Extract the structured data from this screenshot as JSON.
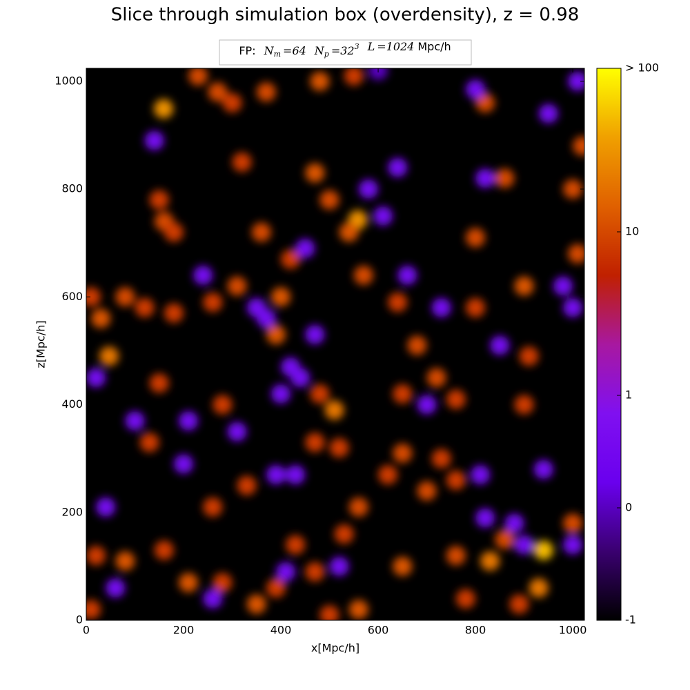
{
  "chart_data": {
    "type": "heatmap",
    "title": "Slice through simulation box (overdensity), z = 0.98",
    "legend": {
      "prefix": "FP:",
      "items": [
        {
          "symbol": "N",
          "sub": "m",
          "value": "=64"
        },
        {
          "symbol": "N",
          "sub": "p",
          "value": "=32",
          "sup": "3"
        },
        {
          "symbol": "L",
          "value": "=1024",
          "unit": "Mpc/h"
        }
      ]
    },
    "x_label": "x[Mpc/h]",
    "y_label": "z[Mpc/h]",
    "xlim": [
      0,
      1024
    ],
    "ylim": [
      0,
      1024
    ],
    "xticks": [
      0,
      200,
      400,
      600,
      800,
      1000
    ],
    "yticks": [
      0,
      200,
      400,
      600,
      800,
      1000
    ],
    "background": "#000000",
    "colorbar": {
      "scale": "symlog",
      "linthresh": 1,
      "lim": [
        -1,
        100
      ],
      "ticks": [
        -1,
        0,
        1,
        10,
        {
          "value": 100,
          "label": "> 100"
        }
      ],
      "colormap": [
        "#000000",
        "#3a0070",
        "#6a00ee",
        "#8010f0",
        "#a818a0",
        "#c02000",
        "#e06000",
        "#f0a000",
        "#ffff00"
      ]
    },
    "x": [
      159,
      230,
      270,
      300,
      370,
      480,
      550,
      600,
      820,
      800,
      1010,
      1020,
      950,
      470,
      500,
      558,
      540,
      610,
      580,
      640,
      820,
      860,
      1000,
      1010,
      150,
      160,
      180,
      320,
      140,
      360,
      310,
      350,
      420,
      450,
      400,
      10,
      30,
      47,
      80,
      120,
      180,
      240,
      260,
      20,
      390,
      370,
      470,
      420,
      400,
      440,
      480,
      510,
      520,
      470,
      150,
      130,
      100,
      210,
      280,
      200,
      330,
      390,
      430,
      310,
      570,
      640,
      660,
      680,
      720,
      700,
      760,
      650,
      730,
      800,
      800,
      900,
      980,
      1000,
      910,
      850,
      900,
      650,
      620,
      700,
      760,
      730,
      810,
      820,
      940,
      880,
      1000,
      560,
      650,
      760,
      830,
      940,
      930,
      860,
      900,
      1000,
      530,
      520,
      470,
      430,
      410,
      560,
      500,
      350,
      390,
      280,
      210,
      260,
      160,
      80,
      20,
      10,
      60,
      40,
      260,
      780,
      890
    ],
    "y": [
      949,
      1010,
      980,
      960,
      980,
      1000,
      1010,
      1020,
      960,
      985,
      1000,
      880,
      940,
      830,
      780,
      743,
      720,
      750,
      800,
      840,
      820,
      820,
      800,
      680,
      780,
      740,
      720,
      850,
      890,
      720,
      620,
      580,
      670,
      690,
      600,
      600,
      560,
      490,
      600,
      580,
      570,
      640,
      590,
      450,
      530,
      560,
      530,
      470,
      420,
      450,
      420,
      390,
      320,
      330,
      440,
      330,
      370,
      370,
      400,
      290,
      250,
      270,
      270,
      350,
      640,
      590,
      640,
      510,
      450,
      400,
      410,
      420,
      580,
      580,
      710,
      620,
      620,
      580,
      490,
      510,
      400,
      310,
      270,
      240,
      260,
      300,
      270,
      190,
      280,
      180,
      180,
      210,
      100,
      120,
      110,
      130,
      60,
      150,
      140,
      140,
      160,
      100,
      90,
      140,
      90,
      20,
      10,
      30,
      60,
      70,
      70,
      40,
      130,
      110,
      120,
      20,
      60,
      210,
      210,
      40,
      30
    ],
    "values": [
      30,
      10,
      10,
      8,
      10,
      12,
      8,
      0,
      10,
      0.5,
      0.5,
      10,
      0.5,
      12,
      10,
      30,
      12,
      0.5,
      0.5,
      0.5,
      0.5,
      10,
      10,
      10,
      8,
      10,
      8,
      8,
      0.5,
      10,
      10,
      0.5,
      8,
      0.5,
      12,
      8,
      12,
      20,
      10,
      8,
      8,
      0.5,
      8,
      0.5,
      12,
      0.5,
      0.5,
      0.5,
      0.5,
      0.5,
      8,
      20,
      8,
      8,
      8,
      8,
      0.5,
      0.5,
      8,
      0.5,
      8,
      0.5,
      0.5,
      0.5,
      10,
      8,
      0.5,
      10,
      10,
      0.5,
      8,
      8,
      0.5,
      8,
      10,
      12,
      0.5,
      0.5,
      8,
      0.5,
      8,
      10,
      8,
      10,
      8,
      8,
      0.5,
      0.5,
      0.5,
      0.5,
      10,
      10,
      12,
      10,
      20,
      50,
      20,
      10,
      0.5,
      0.5,
      8,
      0.5,
      8,
      8,
      0.5,
      12,
      8,
      12,
      8,
      8,
      12,
      0.5,
      8,
      12,
      8,
      8,
      0.5,
      0.5,
      8,
      8,
      8
    ]
  }
}
